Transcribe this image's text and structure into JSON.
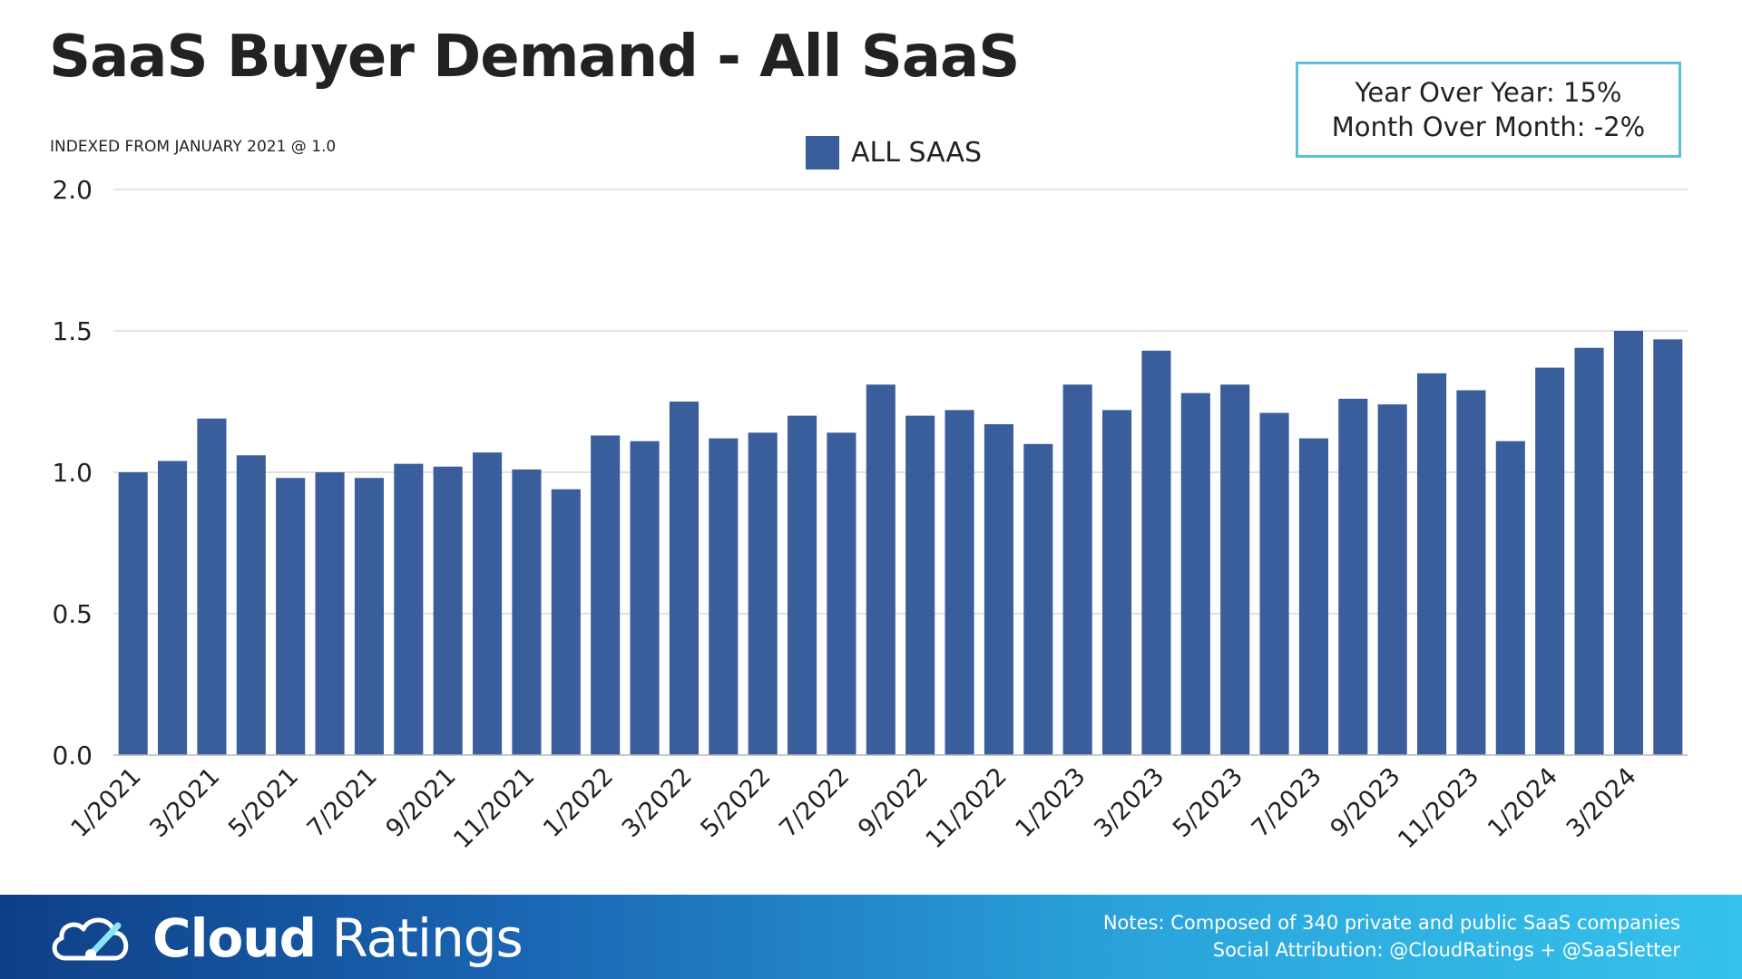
{
  "title": "SaaS Buyer Demand - All SaaS",
  "subtitle": "INDEXED FROM JANUARY 2021 @ 1.0",
  "stats": {
    "yoy": "Year Over Year: 15%",
    "mom": "Month Over Month: -2%"
  },
  "colors": {
    "bar": "#3a5d9c",
    "box_border": "#5cbfd8",
    "grid": "#d9d9d9"
  },
  "footer": {
    "brand_bold": "Cloud",
    "brand_light": "Ratings",
    "logo_icon": "cloud-speedometer-icon",
    "notes_line1": "Notes: Composed of 340 private and public SaaS companies",
    "notes_line2": "Social Attribution: @CloudRatings + @SaaSletter"
  },
  "chart_data": {
    "type": "bar",
    "title": "SaaS Buyer Demand - All SaaS",
    "subtitle": "INDEXED FROM JANUARY 2021 @ 1.0",
    "categories": [
      "1/2021",
      "2/2021",
      "3/2021",
      "4/2021",
      "5/2021",
      "6/2021",
      "7/2021",
      "8/2021",
      "9/2021",
      "10/2021",
      "11/2021",
      "12/2021",
      "1/2022",
      "2/2022",
      "3/2022",
      "4/2022",
      "5/2022",
      "6/2022",
      "7/2022",
      "8/2022",
      "9/2022",
      "10/2022",
      "11/2022",
      "12/2022",
      "1/2023",
      "2/2023",
      "3/2023",
      "4/2023",
      "5/2023",
      "6/2023",
      "7/2023",
      "8/2023",
      "9/2023",
      "10/2023",
      "11/2023",
      "12/2023",
      "1/2024",
      "2/2024",
      "3/2024",
      "4/2024"
    ],
    "tick_labels": [
      "1/2021",
      "3/2021",
      "5/2021",
      "7/2021",
      "9/2021",
      "11/2021",
      "1/2022",
      "3/2022",
      "5/2022",
      "7/2022",
      "9/2022",
      "11/2022",
      "1/2023",
      "3/2023",
      "5/2023",
      "7/2023",
      "9/2023",
      "11/2023",
      "1/2024",
      "3/2024"
    ],
    "series": [
      {
        "name": "ALL SAAS",
        "values": [
          1.0,
          1.04,
          1.19,
          1.06,
          0.98,
          1.0,
          0.98,
          1.03,
          1.02,
          1.07,
          1.01,
          0.94,
          1.13,
          1.11,
          1.25,
          1.12,
          1.14,
          1.2,
          1.14,
          1.31,
          1.2,
          1.22,
          1.17,
          1.1,
          1.31,
          1.22,
          1.43,
          1.28,
          1.31,
          1.21,
          1.12,
          1.26,
          1.24,
          1.35,
          1.29,
          1.11,
          1.37,
          1.44,
          1.5,
          1.47
        ]
      }
    ],
    "ylim": [
      0,
      2.0
    ],
    "yticks": [
      "0.0",
      "0.5",
      "1.0",
      "1.5",
      "2.0"
    ],
    "grid": true,
    "legend_position": "top-center"
  }
}
